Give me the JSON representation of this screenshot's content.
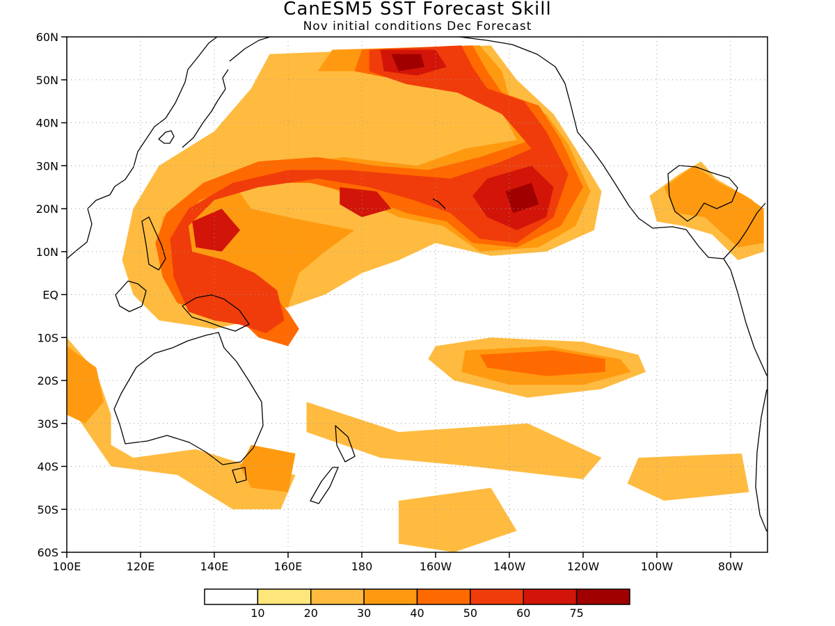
{
  "title": "CanESM5 SST Forecast Skill",
  "subtitle": "Nov initial conditions   Dec Forecast",
  "map": {
    "lon_range": [
      100,
      290
    ],
    "lat_range": [
      -60,
      60
    ],
    "lat_ticks": [
      {
        "lat": 60,
        "label": "60N"
      },
      {
        "lat": 50,
        "label": "50N"
      },
      {
        "lat": 40,
        "label": "40N"
      },
      {
        "lat": 30,
        "label": "30N"
      },
      {
        "lat": 20,
        "label": "20N"
      },
      {
        "lat": 10,
        "label": "10N"
      },
      {
        "lat": 0,
        "label": "EQ"
      },
      {
        "lat": -10,
        "label": "10S"
      },
      {
        "lat": -20,
        "label": "20S"
      },
      {
        "lat": -30,
        "label": "30S"
      },
      {
        "lat": -40,
        "label": "40S"
      },
      {
        "lat": -50,
        "label": "50S"
      },
      {
        "lat": -60,
        "label": "60S"
      }
    ],
    "lon_ticks": [
      {
        "lon": 100,
        "label": "100E"
      },
      {
        "lon": 120,
        "label": "120E"
      },
      {
        "lon": 140,
        "label": "140E"
      },
      {
        "lon": 160,
        "label": "160E"
      },
      {
        "lon": 180,
        "label": "180"
      },
      {
        "lon": 200,
        "label": "160W"
      },
      {
        "lon": 220,
        "label": "140W"
      },
      {
        "lon": 240,
        "label": "120W"
      },
      {
        "lon": 260,
        "label": "100W"
      },
      {
        "lon": 280,
        "label": "80W"
      }
    ],
    "gridlines": "dotted",
    "skill_regions": [
      {
        "level": 20,
        "poly": [
          [
            155,
            56
          ],
          [
            215,
            58
          ],
          [
            222,
            50
          ],
          [
            232,
            42
          ],
          [
            238,
            34
          ],
          [
            245,
            24
          ],
          [
            243,
            15
          ],
          [
            230,
            10
          ],
          [
            215,
            9
          ],
          [
            200,
            12
          ],
          [
            190,
            8
          ],
          [
            180,
            5
          ],
          [
            170,
            0
          ],
          [
            160,
            -3
          ],
          [
            150,
            -6
          ],
          [
            140,
            -8
          ],
          [
            125,
            -6
          ],
          [
            118,
            0
          ],
          [
            115,
            8
          ],
          [
            118,
            20
          ],
          [
            125,
            30
          ],
          [
            140,
            38
          ],
          [
            150,
            48
          ]
        ]
      },
      {
        "level": 20,
        "poly": [
          [
            200,
            -12
          ],
          [
            215,
            -10
          ],
          [
            240,
            -11
          ],
          [
            255,
            -14
          ],
          [
            257,
            -18
          ],
          [
            245,
            -22
          ],
          [
            225,
            -24
          ],
          [
            205,
            -20
          ],
          [
            198,
            -15
          ]
        ]
      },
      {
        "level": 20,
        "poly": [
          [
            165,
            -25
          ],
          [
            190,
            -32
          ],
          [
            225,
            -30
          ],
          [
            245,
            -38
          ],
          [
            240,
            -43
          ],
          [
            210,
            -40
          ],
          [
            185,
            -38
          ],
          [
            165,
            -32
          ]
        ]
      },
      {
        "level": 20,
        "poly": [
          [
            100,
            -10
          ],
          [
            108,
            -18
          ],
          [
            112,
            -28
          ],
          [
            112,
            -35
          ],
          [
            118,
            -38
          ],
          [
            135,
            -36
          ],
          [
            150,
            -40
          ],
          [
            162,
            -42
          ],
          [
            158,
            -50
          ],
          [
            145,
            -50
          ],
          [
            130,
            -42
          ],
          [
            112,
            -40
          ],
          [
            100,
            -25
          ]
        ]
      },
      {
        "level": 20,
        "poly": [
          [
            190,
            -48
          ],
          [
            215,
            -45
          ],
          [
            222,
            -55
          ],
          [
            205,
            -60
          ],
          [
            190,
            -58
          ]
        ]
      },
      {
        "level": 20,
        "poly": [
          [
            255,
            -38
          ],
          [
            283,
            -37
          ],
          [
            285,
            -46
          ],
          [
            262,
            -48
          ],
          [
            252,
            -44
          ]
        ]
      },
      {
        "level": 20,
        "poly": [
          [
            258,
            23
          ],
          [
            266,
            28
          ],
          [
            272,
            31
          ],
          [
            276,
            27
          ],
          [
            282,
            24
          ],
          [
            286,
            22
          ],
          [
            289,
            18
          ],
          [
            289,
            10
          ],
          [
            282,
            8
          ],
          [
            275,
            14
          ],
          [
            267,
            16
          ],
          [
            260,
            17
          ]
        ]
      },
      {
        "level": 30,
        "poly": [
          [
            172,
            57
          ],
          [
            212,
            58
          ],
          [
            218,
            52
          ],
          [
            220,
            46
          ],
          [
            230,
            42
          ],
          [
            236,
            35
          ],
          [
            242,
            24
          ],
          [
            238,
            16
          ],
          [
            228,
            11
          ],
          [
            212,
            10
          ],
          [
            202,
            16
          ],
          [
            190,
            18
          ],
          [
            180,
            22
          ],
          [
            165,
            27
          ],
          [
            150,
            28
          ],
          [
            135,
            24
          ],
          [
            126,
            18
          ],
          [
            125,
            10
          ],
          [
            132,
            2
          ],
          [
            142,
            2
          ],
          [
            150,
            -1
          ],
          [
            160,
            -3
          ],
          [
            163,
            5
          ],
          [
            170,
            10
          ],
          [
            178,
            15
          ],
          [
            160,
            18
          ],
          [
            150,
            20
          ],
          [
            145,
            26
          ],
          [
            158,
            30
          ],
          [
            175,
            32
          ],
          [
            195,
            30
          ],
          [
            208,
            34
          ],
          [
            222,
            36
          ],
          [
            216,
            46
          ],
          [
            200,
            50
          ],
          [
            182,
            52
          ],
          [
            168,
            52
          ]
        ]
      },
      {
        "level": 30,
        "poly": [
          [
            208,
            -13
          ],
          [
            230,
            -12
          ],
          [
            250,
            -15
          ],
          [
            253,
            -18
          ],
          [
            240,
            -21
          ],
          [
            220,
            -21
          ],
          [
            207,
            -18
          ]
        ]
      },
      {
        "level": 30,
        "poly": [
          [
            150,
            -35
          ],
          [
            162,
            -37
          ],
          [
            160,
            -46
          ],
          [
            150,
            -45
          ],
          [
            147,
            -40
          ]
        ]
      },
      {
        "level": 30,
        "poly": [
          [
            100,
            -12
          ],
          [
            108,
            -17
          ],
          [
            110,
            -25
          ],
          [
            105,
            -30
          ],
          [
            100,
            -28
          ]
        ]
      },
      {
        "level": 30,
        "poly": [
          [
            262,
            25
          ],
          [
            270,
            30
          ],
          [
            277,
            26
          ],
          [
            284,
            23
          ],
          [
            289,
            20
          ],
          [
            289,
            12
          ],
          [
            282,
            11
          ],
          [
            273,
            18
          ],
          [
            265,
            19
          ]
        ]
      },
      {
        "level": 40,
        "poly": [
          [
            180,
            57
          ],
          [
            210,
            58
          ],
          [
            214,
            52
          ],
          [
            218,
            47
          ],
          [
            228,
            44
          ],
          [
            234,
            36
          ],
          [
            240,
            25
          ],
          [
            234,
            16
          ],
          [
            222,
            11
          ],
          [
            210,
            12
          ],
          [
            203,
            17
          ],
          [
            192,
            19
          ],
          [
            180,
            23
          ],
          [
            166,
            26
          ],
          [
            150,
            26
          ],
          [
            136,
            22
          ],
          [
            129,
            14
          ],
          [
            132,
            7
          ],
          [
            140,
            5
          ],
          [
            148,
            2
          ],
          [
            156,
            0
          ],
          [
            160,
            -4
          ],
          [
            163,
            -8
          ],
          [
            160,
            -12
          ],
          [
            152,
            -10
          ],
          [
            146,
            -5
          ],
          [
            138,
            -4
          ],
          [
            130,
            -2
          ],
          [
            126,
            4
          ],
          [
            124,
            12
          ],
          [
            127,
            19
          ],
          [
            137,
            26
          ],
          [
            152,
            31
          ],
          [
            168,
            32
          ],
          [
            184,
            30
          ],
          [
            198,
            29
          ],
          [
            212,
            32
          ],
          [
            226,
            36
          ],
          [
            220,
            44
          ],
          [
            206,
            49
          ],
          [
            190,
            50
          ],
          [
            178,
            52
          ]
        ]
      },
      {
        "level": 40,
        "poly": [
          [
            212,
            -14
          ],
          [
            232,
            -13
          ],
          [
            246,
            -15
          ],
          [
            246,
            -18
          ],
          [
            230,
            -19
          ],
          [
            214,
            -17
          ]
        ]
      },
      {
        "level": 50,
        "poly": [
          [
            182,
            57
          ],
          [
            207,
            58
          ],
          [
            210,
            53
          ],
          [
            214,
            48
          ],
          [
            224,
            45
          ],
          [
            230,
            38
          ],
          [
            236,
            28
          ],
          [
            232,
            18
          ],
          [
            222,
            12
          ],
          [
            212,
            13
          ],
          [
            204,
            19
          ],
          [
            194,
            22
          ],
          [
            182,
            25
          ],
          [
            168,
            27
          ],
          [
            152,
            25
          ],
          [
            140,
            22
          ],
          [
            133,
            16
          ],
          [
            134,
            10
          ],
          [
            143,
            8
          ],
          [
            151,
            5
          ],
          [
            157,
            1
          ],
          [
            159,
            -6
          ],
          [
            154,
            -9
          ],
          [
            147,
            -7
          ],
          [
            140,
            -6
          ],
          [
            133,
            -4
          ],
          [
            129,
            4
          ],
          [
            128,
            13
          ],
          [
            133,
            20
          ],
          [
            145,
            26
          ],
          [
            160,
            29
          ],
          [
            176,
            29
          ],
          [
            190,
            28
          ],
          [
            204,
            27
          ],
          [
            218,
            31
          ],
          [
            226,
            34
          ],
          [
            218,
            42
          ],
          [
            206,
            47
          ],
          [
            192,
            49
          ],
          [
            182,
            52
          ]
        ]
      },
      {
        "level": 60,
        "poly": [
          [
            185,
            57
          ],
          [
            200,
            57
          ],
          [
            203,
            53
          ],
          [
            195,
            51
          ],
          [
            186,
            52
          ]
        ]
      },
      {
        "level": 60,
        "poly": [
          [
            214,
            27
          ],
          [
            226,
            30
          ],
          [
            232,
            25
          ],
          [
            230,
            18
          ],
          [
            222,
            15
          ],
          [
            214,
            18
          ],
          [
            210,
            23
          ]
        ]
      },
      {
        "level": 60,
        "poly": [
          [
            134,
            17
          ],
          [
            142,
            20
          ],
          [
            147,
            15
          ],
          [
            142,
            10
          ],
          [
            135,
            11
          ]
        ]
      },
      {
        "level": 60,
        "poly": [
          [
            174,
            25
          ],
          [
            184,
            24
          ],
          [
            188,
            20
          ],
          [
            180,
            18
          ],
          [
            174,
            21
          ]
        ]
      },
      {
        "level": 75,
        "poly": [
          [
            188,
            56
          ],
          [
            196,
            56
          ],
          [
            197,
            53
          ],
          [
            190,
            52
          ]
        ]
      },
      {
        "level": 75,
        "poly": [
          [
            219,
            24
          ],
          [
            226,
            26
          ],
          [
            228,
            21
          ],
          [
            221,
            19
          ]
        ]
      }
    ]
  },
  "colorbar": {
    "labels": [
      "10",
      "20",
      "30",
      "40",
      "50",
      "60",
      "75"
    ],
    "colors": [
      "#ffffff",
      "#ffe67a",
      "#ffbb40",
      "#ff9a10",
      "#ff6a00",
      "#f03c0a",
      "#d21508",
      "#a00000"
    ]
  }
}
